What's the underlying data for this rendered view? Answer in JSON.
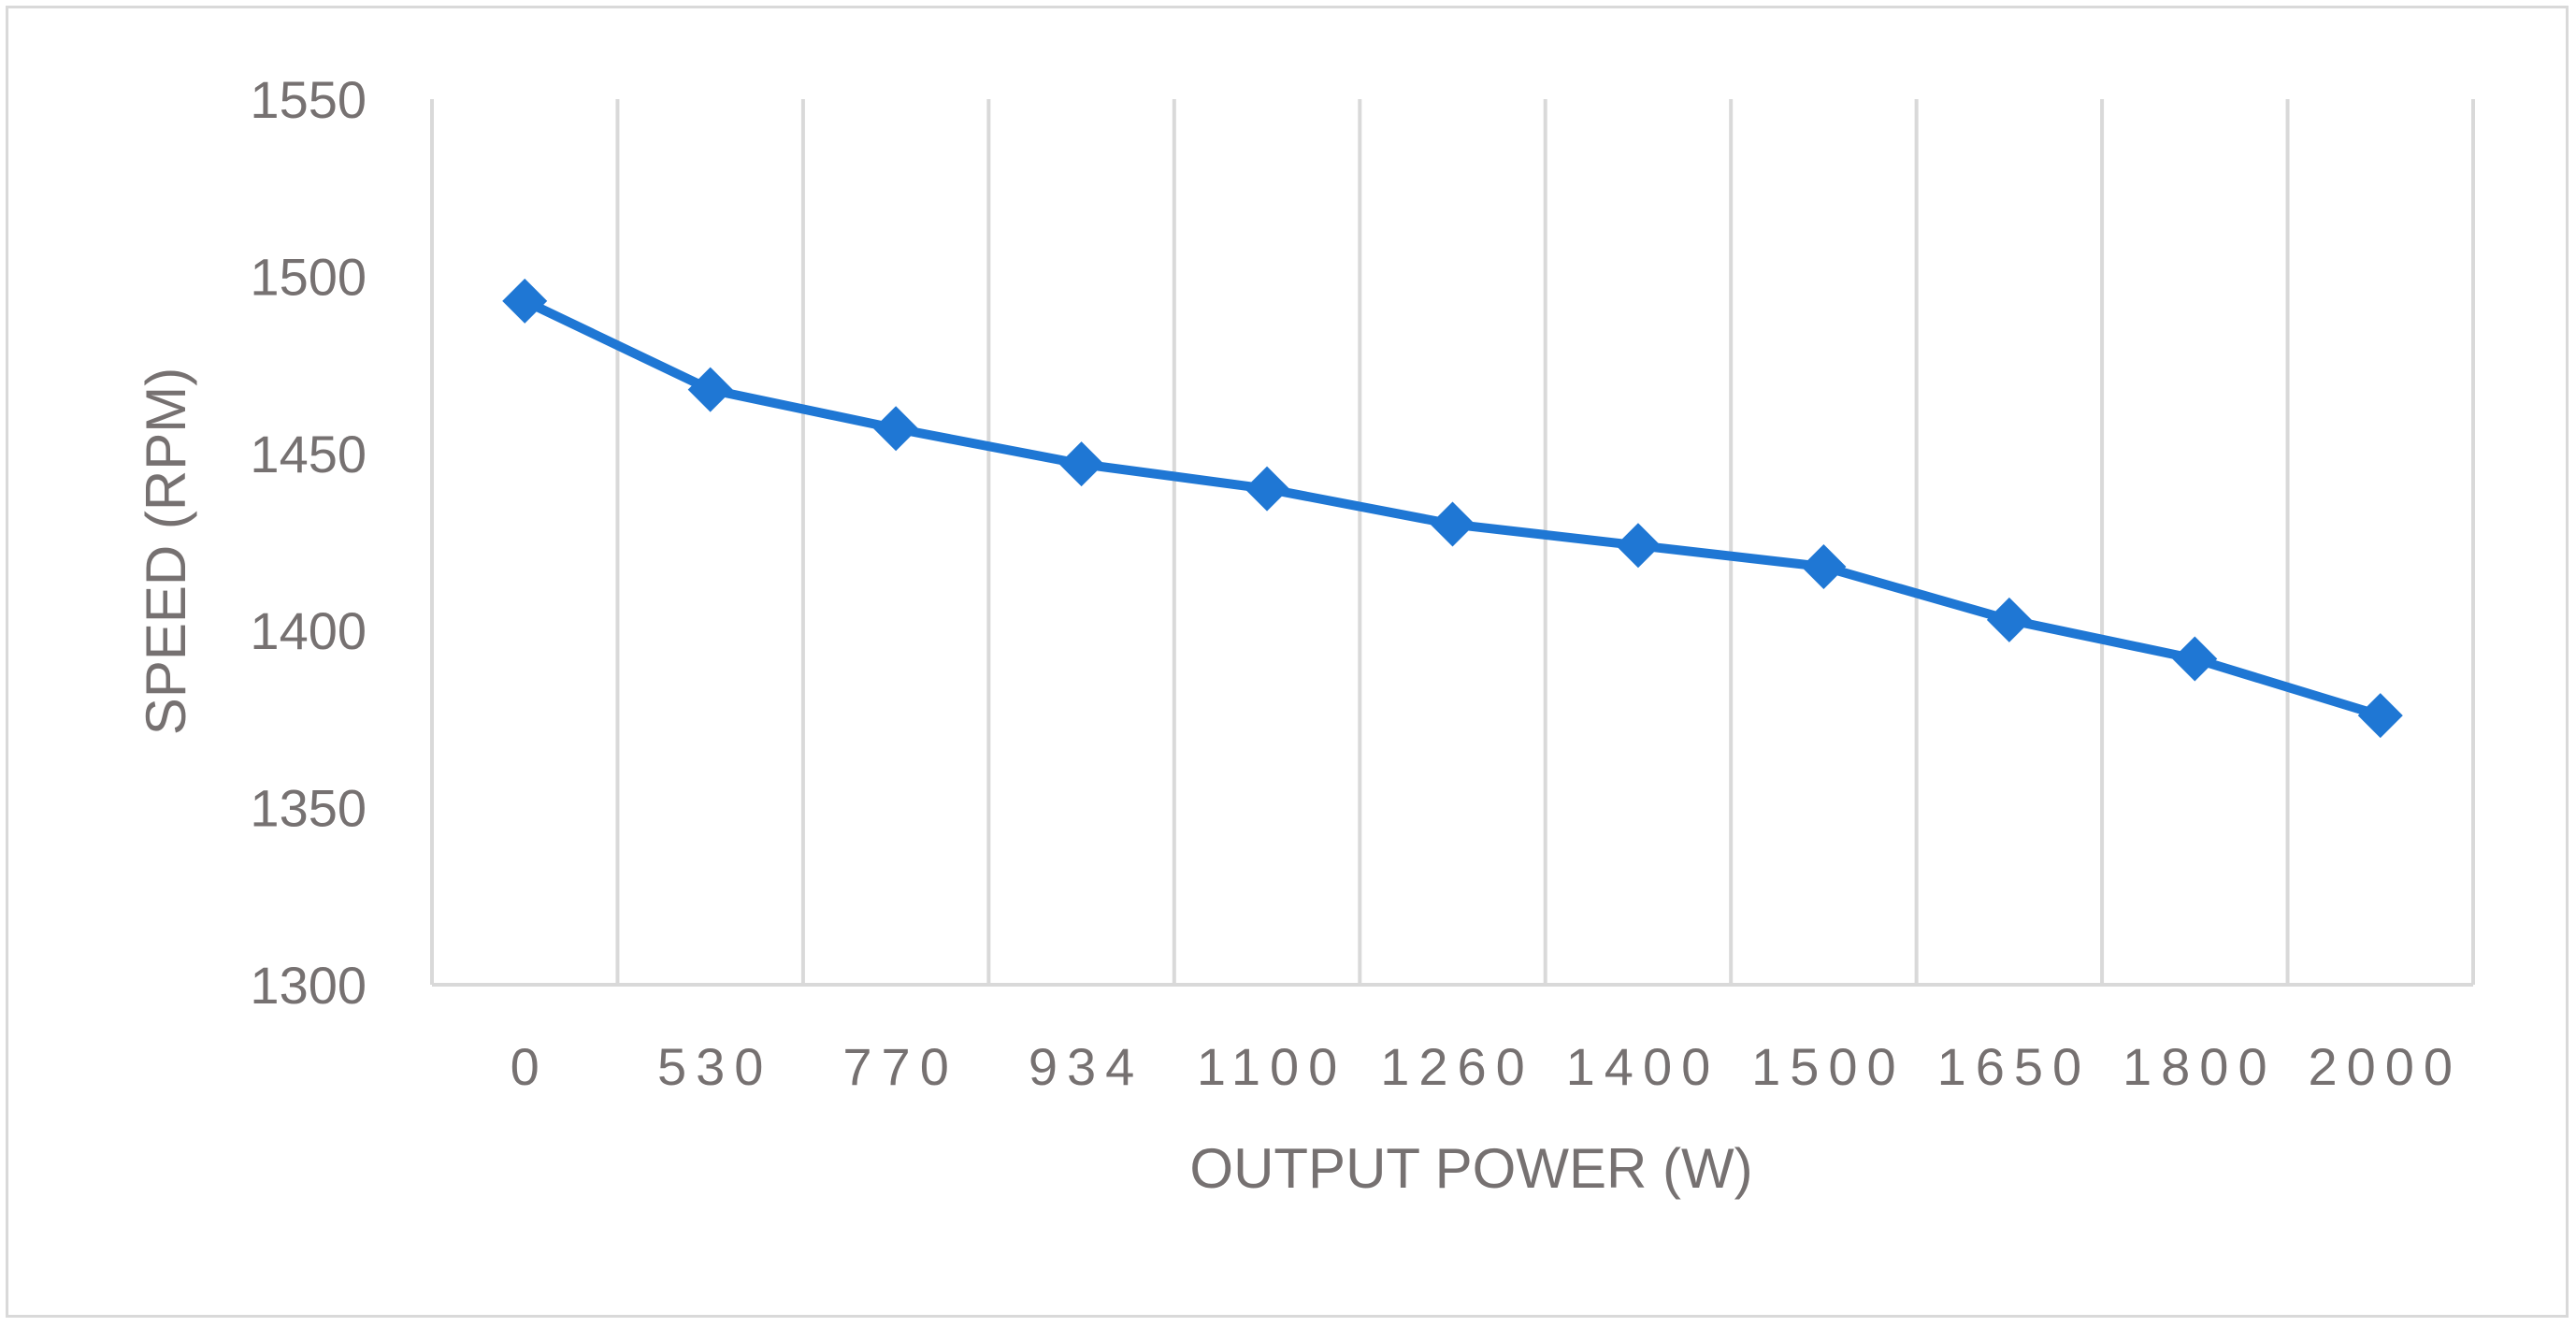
{
  "chart_data": {
    "type": "line",
    "title": "",
    "xlabel": "OUTPUT POWER (W)",
    "ylabel": "SPEED (RPM)",
    "categories": [
      "0",
      "530",
      "770",
      "934",
      "1100",
      "1260",
      "1400",
      "1500",
      "1650",
      "1800",
      "2000"
    ],
    "series": [
      {
        "values": [
          1493,
          1468,
          1457,
          1447,
          1440,
          1430,
          1424,
          1418,
          1403,
          1392,
          1376
        ]
      }
    ],
    "ylim": [
      1300,
      1550
    ],
    "yticks": [
      "1300",
      "1350",
      "1400",
      "1450",
      "1500",
      "1550"
    ],
    "grid": "vertical",
    "legend": "none",
    "colors": {
      "line": "#1f77d4",
      "marker": "#1f77d4",
      "grid": "#d9d9d9",
      "text": "#767171"
    },
    "marker": "diamond"
  }
}
